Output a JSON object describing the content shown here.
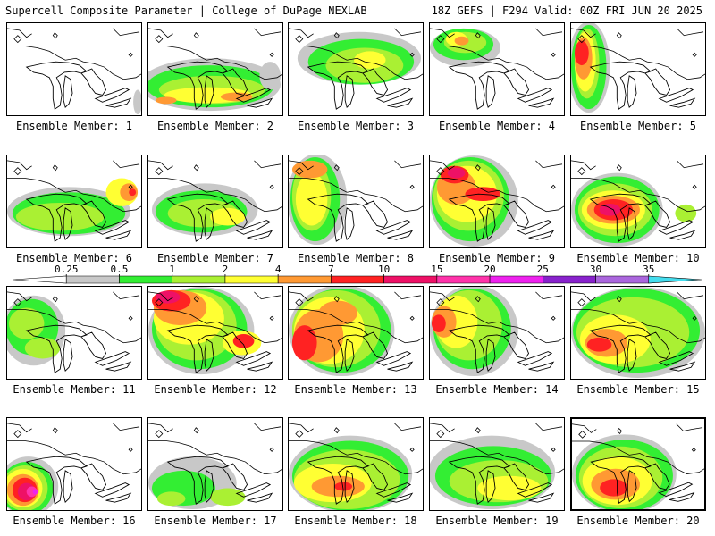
{
  "header": {
    "left": "Supercell Composite Parameter | College of DuPage NEXLAB",
    "right": "18Z GEFS | F294 Valid: 00Z FRI JUN 20 2025"
  },
  "label_prefix": "Ensemble Member:",
  "members": [
    1,
    2,
    3,
    4,
    5,
    6,
    7,
    8,
    9,
    10,
    11,
    12,
    13,
    14,
    15,
    16,
    17,
    18,
    19,
    20
  ],
  "colorbar": {
    "ticks": [
      "0.25",
      "0.5",
      "1",
      "2",
      "4",
      "7",
      "10",
      "15",
      "20",
      "25",
      "30",
      "35"
    ],
    "colors": [
      "#ffffff",
      "#c8c8c8",
      "#33ee33",
      "#aaf033",
      "#ffff33",
      "#ff9933",
      "#ff2222",
      "#ee1166",
      "#ff33aa",
      "#ee22ee",
      "#8822cc",
      "#aa66dd",
      "#44ddee"
    ]
  },
  "shading": {
    "0.25": "#c8c8c8",
    "0.5": "#33ee33",
    "1": "#aaf033",
    "2": "#ffff33",
    "4": "#ff9933",
    "7": "#ff2222",
    "10": "#ee1166",
    "15": "#ff33aa",
    "20": "#ee22ee"
  }
}
